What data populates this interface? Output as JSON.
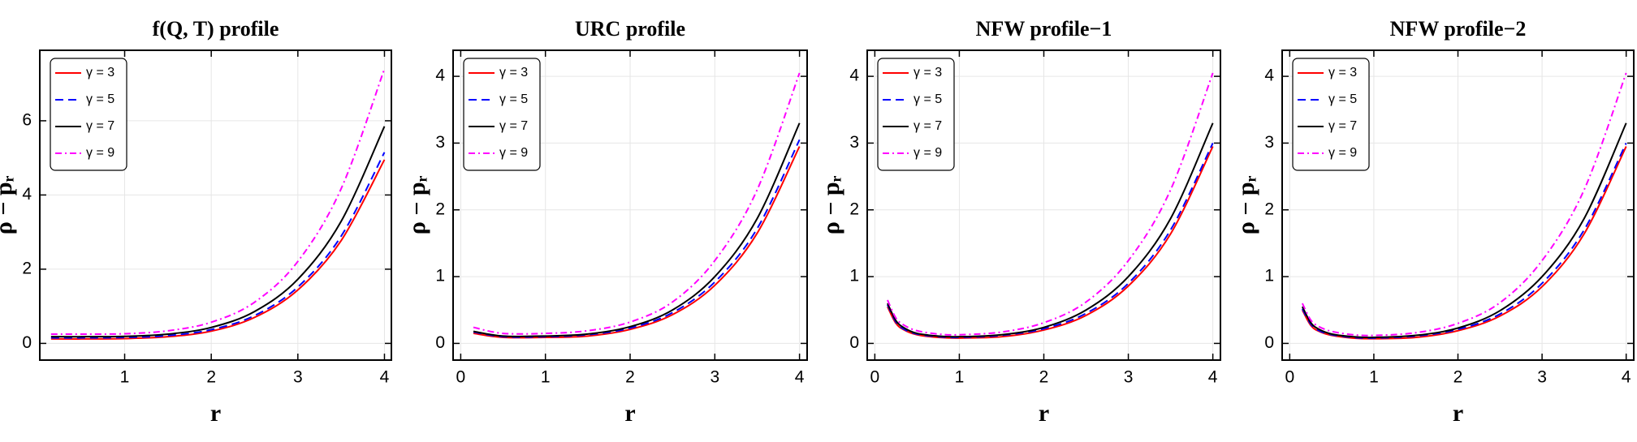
{
  "chart_data": [
    {
      "type": "line",
      "title": "f(Q, T) profile",
      "x_label": "r",
      "y_label": "ρ − pᵣ",
      "x": [
        0.15,
        0.5,
        1,
        1.5,
        2,
        2.5,
        3,
        3.5,
        4
      ],
      "xlim": [
        0.02,
        4.08
      ],
      "ylim": [
        -0.45,
        7.9
      ],
      "xticks": [
        1,
        2,
        3,
        4
      ],
      "yticks": [
        0,
        2,
        4,
        6
      ],
      "grid": true,
      "series": [
        {
          "name": "γ = 3",
          "color": "#ff0000",
          "style": "solid",
          "values": [
            0.12,
            0.12,
            0.13,
            0.18,
            0.33,
            0.7,
            1.44,
            2.77,
            4.95
          ]
        },
        {
          "name": "γ = 5",
          "color": "#0000ff",
          "style": "dashed",
          "values": [
            0.15,
            0.15,
            0.16,
            0.21,
            0.37,
            0.75,
            1.52,
            2.89,
            5.15
          ]
        },
        {
          "name": "γ = 7",
          "color": "#000000",
          "style": "solid",
          "values": [
            0.18,
            0.18,
            0.19,
            0.25,
            0.43,
            0.86,
            1.73,
            3.29,
            5.85
          ]
        },
        {
          "name": "γ = 9",
          "color": "#ff00ff",
          "style": "dashdot",
          "values": [
            0.25,
            0.25,
            0.26,
            0.34,
            0.57,
            1.11,
            2.21,
            4.17,
            7.4
          ]
        }
      ]
    },
    {
      "type": "line",
      "title": "URC profile",
      "x_label": "r",
      "y_label": "ρ − pᵣ",
      "x": [
        0.15,
        0.5,
        1,
        1.5,
        2,
        2.5,
        3,
        3.5,
        4
      ],
      "xlim": [
        -0.09,
        4.09
      ],
      "ylim": [
        -0.25,
        4.39
      ],
      "xticks": [
        0,
        1,
        2,
        3,
        4
      ],
      "yticks": [
        0,
        1,
        2,
        3,
        4
      ],
      "grid": true,
      "series": [
        {
          "name": "γ = 3",
          "color": "#ff0000",
          "style": "solid",
          "values": [
            0.15,
            0.09,
            0.09,
            0.11,
            0.21,
            0.43,
            0.87,
            1.65,
            2.95
          ]
        },
        {
          "name": "γ = 5",
          "color": "#0000ff",
          "style": "dashed",
          "values": [
            0.17,
            0.1,
            0.1,
            0.13,
            0.23,
            0.46,
            0.92,
            1.72,
            3.05
          ]
        },
        {
          "name": "γ = 7",
          "color": "#000000",
          "style": "solid",
          "values": [
            0.18,
            0.11,
            0.11,
            0.14,
            0.25,
            0.5,
            1.0,
            1.87,
            3.3
          ]
        },
        {
          "name": "γ = 9",
          "color": "#ff00ff",
          "style": "dashdot",
          "values": [
            0.24,
            0.15,
            0.15,
            0.19,
            0.32,
            0.62,
            1.24,
            2.3,
            4.05
          ]
        }
      ]
    },
    {
      "type": "line",
      "title": "NFW profile−1",
      "x_label": "r",
      "y_label": "ρ − pᵣ",
      "x": [
        0.15,
        0.25,
        0.35,
        0.5,
        0.75,
        1,
        1.5,
        2,
        2.5,
        3,
        3.5,
        4
      ],
      "xlim": [
        -0.09,
        4.09
      ],
      "ylim": [
        -0.25,
        4.39
      ],
      "xticks": [
        0,
        1,
        2,
        3,
        4
      ],
      "yticks": [
        0,
        1,
        2,
        3,
        4
      ],
      "grid": true,
      "series": [
        {
          "name": "γ = 3",
          "color": "#ff0000",
          "style": "solid",
          "values": [
            0.55,
            0.3,
            0.2,
            0.13,
            0.09,
            0.08,
            0.1,
            0.2,
            0.42,
            0.86,
            1.64,
            2.95
          ]
        },
        {
          "name": "γ = 5",
          "color": "#0000ff",
          "style": "dashed",
          "values": [
            0.58,
            0.32,
            0.21,
            0.14,
            0.1,
            0.09,
            0.12,
            0.22,
            0.45,
            0.9,
            1.7,
            3.0
          ]
        },
        {
          "name": "γ = 7",
          "color": "#000000",
          "style": "solid",
          "values": [
            0.6,
            0.34,
            0.23,
            0.15,
            0.11,
            0.1,
            0.13,
            0.24,
            0.5,
            1.0,
            1.87,
            3.3
          ]
        },
        {
          "name": "γ = 9",
          "color": "#ff00ff",
          "style": "dashdot",
          "values": [
            0.65,
            0.38,
            0.27,
            0.19,
            0.14,
            0.13,
            0.17,
            0.31,
            0.62,
            1.24,
            2.3,
            4.05
          ]
        }
      ]
    },
    {
      "type": "line",
      "title": "NFW profile−2",
      "x_label": "r",
      "y_label": "ρ − pᵣ",
      "x": [
        0.15,
        0.25,
        0.35,
        0.5,
        0.75,
        1,
        1.5,
        2,
        2.5,
        3,
        3.5,
        4
      ],
      "xlim": [
        -0.09,
        4.09
      ],
      "ylim": [
        -0.25,
        4.39
      ],
      "xticks": [
        0,
        1,
        2,
        3,
        4
      ],
      "yticks": [
        0,
        1,
        2,
        3,
        4
      ],
      "grid": true,
      "series": [
        {
          "name": "γ = 3",
          "color": "#ff0000",
          "style": "solid",
          "values": [
            0.5,
            0.27,
            0.18,
            0.12,
            0.08,
            0.07,
            0.09,
            0.19,
            0.41,
            0.85,
            1.64,
            2.95
          ]
        },
        {
          "name": "γ = 5",
          "color": "#0000ff",
          "style": "dashed",
          "values": [
            0.52,
            0.29,
            0.19,
            0.13,
            0.09,
            0.08,
            0.11,
            0.21,
            0.44,
            0.9,
            1.7,
            3.0
          ]
        },
        {
          "name": "γ = 7",
          "color": "#000000",
          "style": "solid",
          "values": [
            0.55,
            0.31,
            0.21,
            0.14,
            0.1,
            0.09,
            0.12,
            0.23,
            0.49,
            1.0,
            1.87,
            3.3
          ]
        },
        {
          "name": "γ = 9",
          "color": "#ff00ff",
          "style": "dashdot",
          "values": [
            0.6,
            0.35,
            0.25,
            0.18,
            0.13,
            0.12,
            0.16,
            0.3,
            0.61,
            1.24,
            2.3,
            4.05
          ]
        }
      ]
    }
  ]
}
